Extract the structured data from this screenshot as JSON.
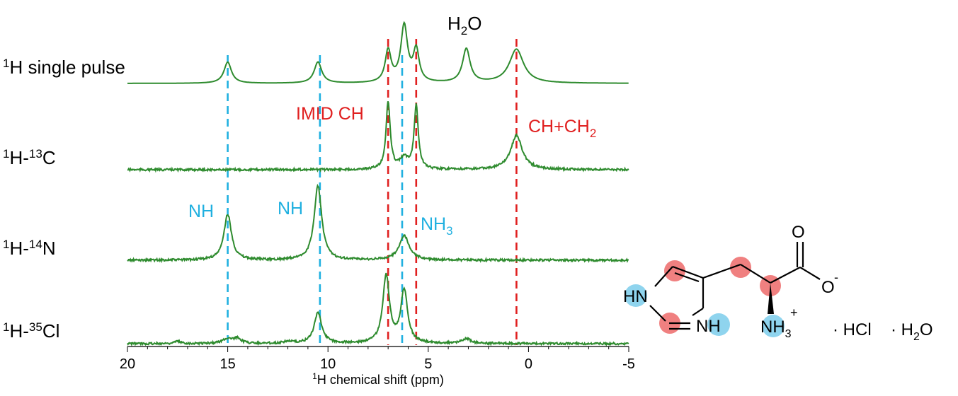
{
  "chart_data": {
    "type": "line",
    "xlabel": "chemical shift (ppm)",
    "xlabel_sup": "1",
    "xlabel_prefix": "H",
    "xlim": [
      20,
      -5
    ],
    "xticks": [
      20,
      15,
      10,
      5,
      0,
      -5
    ],
    "line_color": "#2e8b2e",
    "series": [
      {
        "label_sup": "1",
        "label_main": "H single pulse",
        "peaks": [
          [
            15.0,
            0.3,
            0.45
          ],
          [
            10.5,
            0.3,
            0.45
          ],
          [
            7.0,
            0.45,
            0.35
          ],
          [
            6.2,
            0.8,
            0.4
          ],
          [
            5.6,
            0.45,
            0.35
          ],
          [
            3.1,
            0.48,
            0.45
          ],
          [
            0.6,
            0.48,
            0.85
          ]
        ]
      },
      {
        "label_sup1": "1",
        "label_main1": "H-",
        "label_sup2": "13",
        "label_main2": "C",
        "peaks": [
          [
            7.0,
            0.95,
            0.25
          ],
          [
            6.2,
            0.15,
            0.5
          ],
          [
            5.6,
            0.9,
            0.25
          ],
          [
            0.6,
            0.48,
            0.7
          ]
        ]
      },
      {
        "label_sup1": "1",
        "label_main1": "H-",
        "label_sup2": "14",
        "label_main2": "N",
        "peaks": [
          [
            15.0,
            0.62,
            0.45
          ],
          [
            10.5,
            1.0,
            0.45
          ],
          [
            6.2,
            0.33,
            0.6
          ]
        ]
      },
      {
        "label_sup1": "1",
        "label_main1": "H-",
        "label_sup2": "35",
        "label_main2": "Cl",
        "peaks": [
          [
            15.0,
            0.07,
            0.6
          ],
          [
            14.5,
            0.07,
            0.4
          ],
          [
            10.5,
            0.44,
            0.45
          ],
          [
            7.1,
            0.95,
            0.4
          ],
          [
            6.2,
            0.75,
            0.4
          ],
          [
            3.1,
            0.07,
            0.5
          ],
          [
            17.5,
            0.03,
            0.4
          ],
          [
            12.0,
            0.03,
            0.5
          ]
        ]
      }
    ],
    "dashed_lines": [
      {
        "x": 15.0,
        "color": "#20b0e0"
      },
      {
        "x": 10.4,
        "color": "#20b0e0"
      },
      {
        "x": 6.3,
        "color": "#20b0e0"
      },
      {
        "x": 7.0,
        "color": "#e02020"
      },
      {
        "x": 5.6,
        "color": "#e02020"
      },
      {
        "x": 0.6,
        "color": "#e02020"
      }
    ],
    "annotations": {
      "h2o_main": "H",
      "h2o_sub": "2",
      "h2o_tail": "O",
      "imid": "IMID CH",
      "chch2_main": "CH+CH",
      "chch2_sub": "2",
      "nh1": "NH",
      "nh2": "NH",
      "nh3_main": "NH",
      "nh3_sub": "3"
    },
    "annotation_colors": {
      "red": "#e02020",
      "blue": "#20b0e0",
      "black": "#000000"
    }
  },
  "molecule": {
    "o": "O",
    "ominus": "O",
    "minus": "-",
    "hn": "HN",
    "nh": "NH",
    "nh3": "NH",
    "nh3_sub": "3",
    "plus": "+",
    "hcl": "· HCl",
    "h2o_main": "· H",
    "h2o_sub": "2",
    "h2o_tail": "O",
    "red_circle": "#f08080",
    "blue_circle": "#8fd4ee"
  }
}
